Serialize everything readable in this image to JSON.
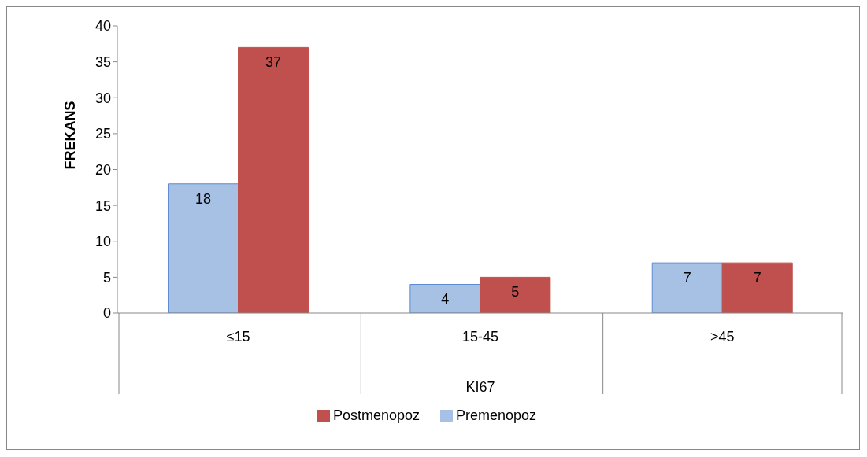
{
  "chart_data": {
    "type": "bar",
    "xlabel": "KI67",
    "ylabel": "FREKANS",
    "categories": [
      "≤15",
      "15-45",
      ">45"
    ],
    "series": [
      {
        "name": "Premenopoz",
        "color": "#a7c1e5",
        "values": [
          18,
          4,
          7
        ]
      },
      {
        "name": "Postmenopoz",
        "color": "#c0504d",
        "values": [
          37,
          5,
          7
        ]
      }
    ],
    "ylim": [
      0,
      40
    ],
    "yticks": [
      0,
      5,
      10,
      15,
      20,
      25,
      30,
      35,
      40
    ],
    "grid": false,
    "data_labels": true,
    "legend": "bottom"
  }
}
